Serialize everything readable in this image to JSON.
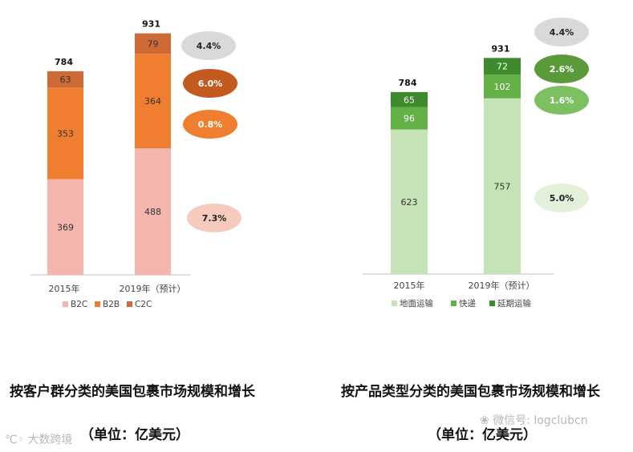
{
  "chart_data": [
    {
      "type": "bar",
      "stacked": true,
      "categories": [
        "2015年",
        "2019年（预计）"
      ],
      "totals": [
        784,
        931
      ],
      "series": [
        {
          "name": "B2C",
          "values": [
            369,
            488
          ],
          "color": "#f4b6ad"
        },
        {
          "name": "B2B",
          "values": [
            353,
            364
          ],
          "color": "#ef7e30"
        },
        {
          "name": "C2C",
          "values": [
            63,
            79
          ],
          "color": "#cd6a36"
        }
      ],
      "growth_labels": [
        {
          "text": "4.4%",
          "fill": "#d9d9d9",
          "text_color": "#222222"
        },
        {
          "text": "6.0%",
          "fill": "#c35a20",
          "text_color": "#ffffff"
        },
        {
          "text": "0.8%",
          "fill": "#ef7e30",
          "text_color": "#ffffff"
        },
        {
          "text": "7.3%",
          "fill": "#f6cabd",
          "text_color": "#222222"
        }
      ],
      "caption": "按客户群分类的美国包裹市场规模和增长",
      "unit": "（单位：亿美元）"
    },
    {
      "type": "bar",
      "stacked": true,
      "categories": [
        "2015年",
        "2019年（预计）"
      ],
      "totals": [
        784,
        931
      ],
      "series": [
        {
          "name": "地面运输",
          "values": [
            623,
            757
          ],
          "color": "#c5e3b6"
        },
        {
          "name": "快递",
          "values": [
            96,
            102
          ],
          "color": "#62b046"
        },
        {
          "name": "延期运输",
          "values": [
            65,
            72
          ],
          "color": "#3e8a2c"
        }
      ],
      "growth_labels": [
        {
          "text": "4.4%",
          "fill": "#d9d9d9",
          "text_color": "#222222"
        },
        {
          "text": "2.6%",
          "fill": "#5a9a3a",
          "text_color": "#ffffff"
        },
        {
          "text": "1.6%",
          "fill": "#7cc062",
          "text_color": "#ffffff"
        },
        {
          "text": "5.0%",
          "fill": "#e3f0da",
          "text_color": "#222222"
        }
      ],
      "caption": "按产品类型分类的美国包裹市场规模和增长",
      "unit": "（单位：亿美元）"
    }
  ],
  "watermarks": {
    "left": "大数跨境",
    "right": "微信号: logclubcn"
  }
}
